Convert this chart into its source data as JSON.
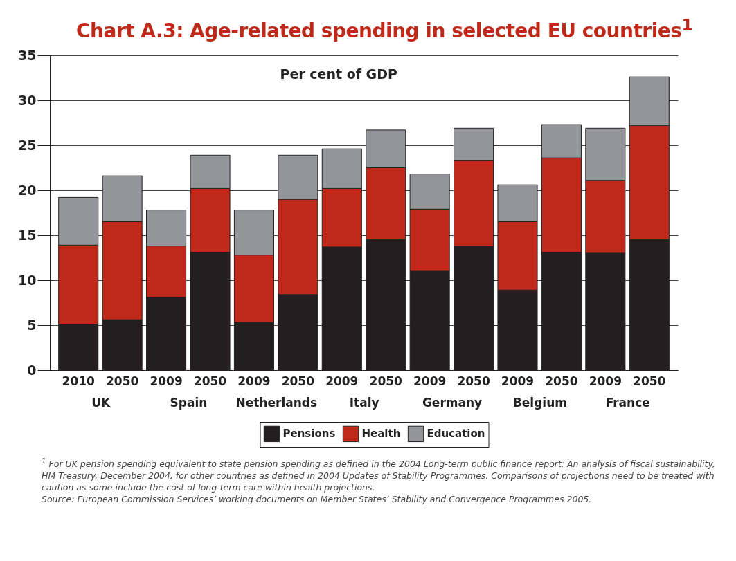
{
  "chart_data": {
    "type": "bar",
    "stacked": true,
    "title": "Chart A.3: Age-related spending in selected EU countries$^{1}$",
    "ylabel": "Per cent of GDP",
    "categories": [
      "2010",
      "2050",
      "2009",
      "2050",
      "2009",
      "2050",
      "2009",
      "2050",
      "2009",
      "2050",
      "2009",
      "2050",
      "2009",
      "2050"
    ],
    "series": [
      {
        "name": "Pensions",
        "color": "#231f20",
        "values": [
          5.1,
          5.6,
          8.1,
          13.1,
          5.3,
          8.4,
          13.7,
          14.5,
          11.0,
          13.8,
          8.9,
          13.1,
          13.0,
          14.5
        ]
      },
      {
        "name": "Health",
        "color": "#c0291a",
        "values": [
          8.8,
          10.9,
          5.7,
          7.1,
          7.5,
          10.6,
          6.5,
          8.0,
          6.9,
          9.5,
          7.6,
          10.5,
          8.1,
          12.7
        ]
      },
      {
        "name": "Education",
        "color": "#939598",
        "values": [
          5.3,
          5.1,
          4.0,
          3.7,
          5.0,
          4.9,
          4.4,
          4.2,
          3.9,
          3.6,
          4.1,
          3.7,
          5.8,
          5.4
        ]
      }
    ],
    "ylim": [
      0,
      35
    ],
    "yticks": [
      0,
      5,
      10,
      15,
      20,
      25,
      30,
      35
    ],
    "grid": "y",
    "legend": "bottom",
    "annotations": [
      "UK",
      "Spain",
      "Netherlands",
      "Italy",
      "Germany",
      "Belgium",
      "France",
      "$^{1}$ For UK pension spending equivalent to state pension spending as defined in the 2004 Long-term public finance report: An analysis of fiscal sustainability, HM Treasury, December 2004, for other countries as defined in 2004 Updates of Stability Programmes. Comparisons of projections need to be treated with caution as some include the cost of long-term care within health projections.",
      "Source: European Commission Services’ working documents on Member States’ Stability and Convergence Programmes 2005."
    ]
  }
}
